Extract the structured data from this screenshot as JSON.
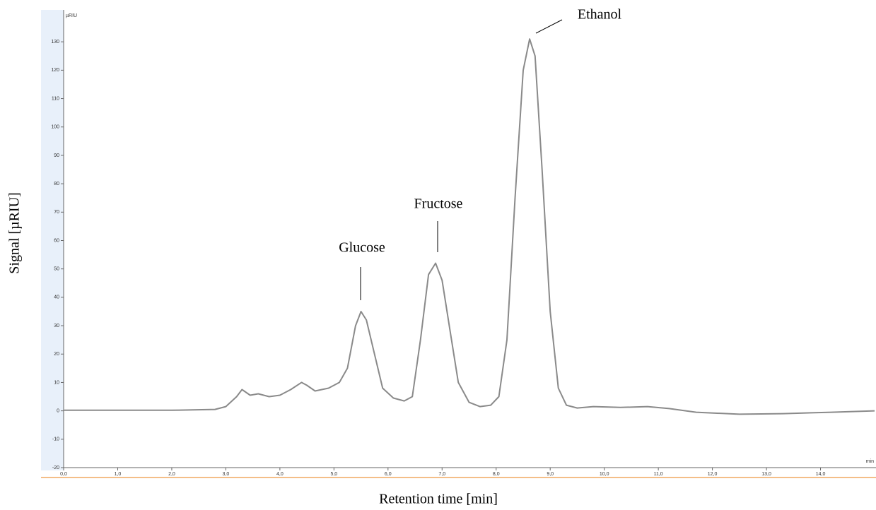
{
  "chart_data": {
    "type": "line",
    "x_label": "Retention time [min]",
    "y_label": "Signal [µRIU]",
    "y_unit": "µRIU",
    "x_unit": "min",
    "annotations": [
      "Glucose",
      "Fructose",
      "Ethanol"
    ],
    "color": "#8a8a8a",
    "x": [
      0,
      1,
      2,
      2.8,
      3.0,
      3.2,
      3.3,
      3.45,
      3.6,
      3.8,
      4.0,
      4.2,
      4.4,
      4.5,
      4.65,
      4.9,
      5.1,
      5.25,
      5.4,
      5.5,
      5.6,
      5.75,
      5.9,
      6.1,
      6.3,
      6.45,
      6.6,
      6.75,
      6.88,
      7.0,
      7.15,
      7.3,
      7.5,
      7.7,
      7.9,
      8.05,
      8.2,
      8.35,
      8.5,
      8.62,
      8.72,
      8.85,
      9.0,
      9.15,
      9.3,
      9.5,
      9.8,
      10.3,
      10.8,
      11.2,
      11.7,
      12.5,
      13.3,
      14.2,
      15.0
    ],
    "values": [
      0.2,
      0.2,
      0.2,
      0.5,
      1.5,
      5,
      7.5,
      5.5,
      6,
      5,
      5.5,
      7.5,
      10,
      9,
      7,
      8,
      10,
      15,
      30,
      35,
      32,
      20,
      8,
      4.5,
      3.5,
      5,
      25,
      48,
      52,
      46,
      28,
      10,
      3,
      1.5,
      2,
      5,
      25,
      75,
      120,
      131,
      125,
      85,
      35,
      8,
      2,
      1,
      1.5,
      1.2,
      1.5,
      0.8,
      -0.5,
      -1.2,
      -1,
      -0.5,
      0
    ],
    "xlim": [
      0,
      15.0
    ],
    "ylim": [
      -20,
      140
    ],
    "xticks": [
      {
        "value": 0,
        "label": "0,0"
      },
      {
        "value": 1,
        "label": "1,0"
      },
      {
        "value": 2,
        "label": "2,0"
      },
      {
        "value": 3,
        "label": "3,0"
      },
      {
        "value": 4,
        "label": "4,0"
      },
      {
        "value": 5,
        "label": "5,0"
      },
      {
        "value": 6,
        "label": "6,0"
      },
      {
        "value": 7,
        "label": "7,0"
      },
      {
        "value": 8,
        "label": "8,0"
      },
      {
        "value": 9,
        "label": "9,0"
      },
      {
        "value": 10,
        "label": "10,0"
      },
      {
        "value": 11,
        "label": "11,0"
      },
      {
        "value": 12,
        "label": "12,0"
      },
      {
        "value": 13,
        "label": "13,0"
      },
      {
        "value": 14,
        "label": "14,0"
      }
    ],
    "yticks": [
      -20,
      -10,
      0,
      10,
      20,
      30,
      40,
      50,
      60,
      70,
      80,
      90,
      100,
      110,
      120,
      130
    ]
  }
}
